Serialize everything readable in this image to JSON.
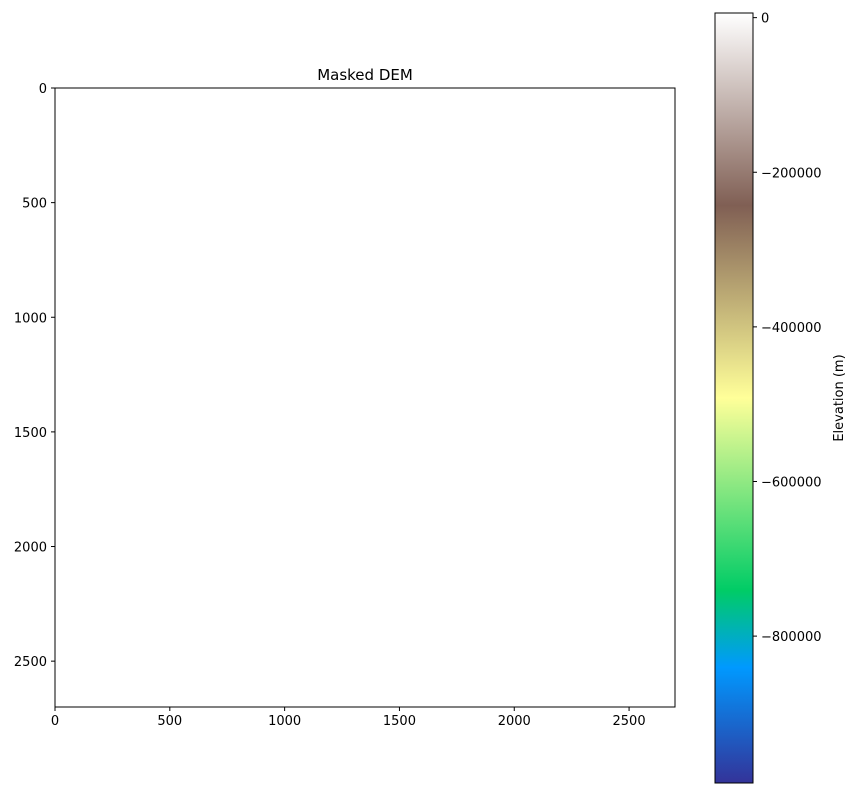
{
  "chart_data": {
    "type": "heatmap",
    "title": "Masked DEM",
    "xlabel": "",
    "ylabel": "",
    "xlim": [
      0,
      2700
    ],
    "ylim": [
      2700,
      0
    ],
    "xticks": [
      0,
      500,
      1000,
      1500,
      2000,
      2500
    ],
    "yticks": [
      0,
      500,
      1000,
      1500,
      2000,
      2500
    ],
    "image_content": "all masked (blank)",
    "grid": false,
    "colorbar": {
      "label": "Elevation (m)",
      "colormap": "terrain",
      "range": [
        -990000,
        6000
      ],
      "ticks": [
        0,
        -200000,
        -400000,
        -600000,
        -800000
      ],
      "tick_labels": [
        "0",
        "−200000",
        "−400000",
        "−600000",
        "−800000"
      ]
    }
  },
  "colors": {
    "axis": "#000000",
    "background": "#ffffff",
    "terrain_stops": [
      "#333399",
      "#0099ff",
      "#00cc66",
      "#99e580",
      "#ffff99",
      "#bfa86a",
      "#805f54",
      "#c0aaa5",
      "#ffffff"
    ]
  }
}
